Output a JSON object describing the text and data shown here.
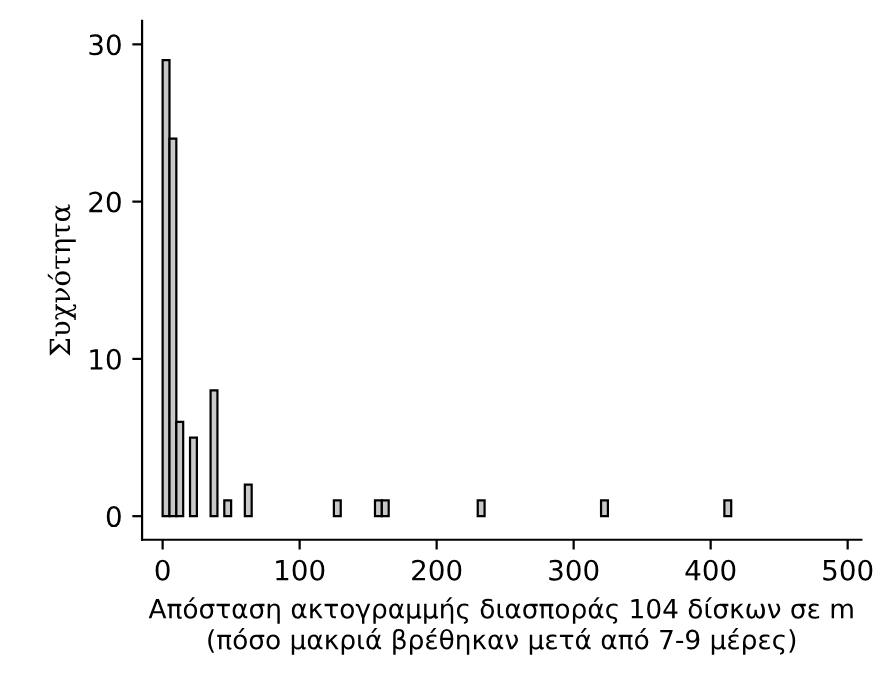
{
  "chart_data": {
    "type": "histogram",
    "xlabel": "Απόσταση ακτογραμμής διασποράς 104 δίσκων σε m\n(πόσο μακριά βρέθηκαν μετά από 7-9 μέρες)",
    "ylabel": "Συχνότητα",
    "bins": [
      0,
      5,
      10,
      15,
      20,
      25,
      30,
      35,
      40,
      45,
      50,
      55,
      60,
      65,
      70,
      75,
      80,
      85,
      90,
      95,
      100,
      105,
      110,
      115,
      120,
      125,
      130,
      135,
      140,
      145,
      150,
      155,
      160,
      165,
      170,
      175,
      180,
      185,
      190,
      195,
      200,
      205,
      210,
      215,
      220,
      225,
      230,
      235,
      240,
      245,
      250,
      255,
      260,
      265,
      270,
      275,
      280,
      285,
      290,
      295,
      300,
      305,
      310,
      315,
      320,
      325,
      330,
      335,
      340,
      345,
      350,
      355,
      360,
      365,
      370,
      375,
      380,
      385,
      390,
      395,
      400,
      405,
      410,
      415
    ],
    "values": [
      29,
      24,
      6,
      0,
      5,
      0,
      0,
      8,
      0,
      1,
      0,
      0,
      2,
      0,
      0,
      0,
      0,
      0,
      0,
      0,
      0,
      0,
      0,
      0,
      0,
      1,
      0,
      0,
      0,
      0,
      0,
      1,
      1,
      0,
      0,
      0,
      0,
      0,
      0,
      0,
      0,
      0,
      0,
      0,
      0,
      0,
      1,
      0,
      0,
      0,
      0,
      0,
      0,
      0,
      0,
      0,
      0,
      0,
      0,
      0,
      0,
      0,
      0,
      0,
      1,
      0,
      0,
      0,
      0,
      0,
      0,
      0,
      0,
      0,
      0,
      0,
      0,
      0,
      0,
      0,
      0,
      0,
      1
    ],
    "color": "#c8c8c8",
    "xlim": [
      -15,
      510
    ],
    "ylim": [
      -1.5,
      31.5
    ],
    "xticks": [
      0,
      100,
      200,
      300,
      400,
      500
    ],
    "yticks": [
      0,
      10,
      20,
      30
    ],
    "grid": false
  }
}
